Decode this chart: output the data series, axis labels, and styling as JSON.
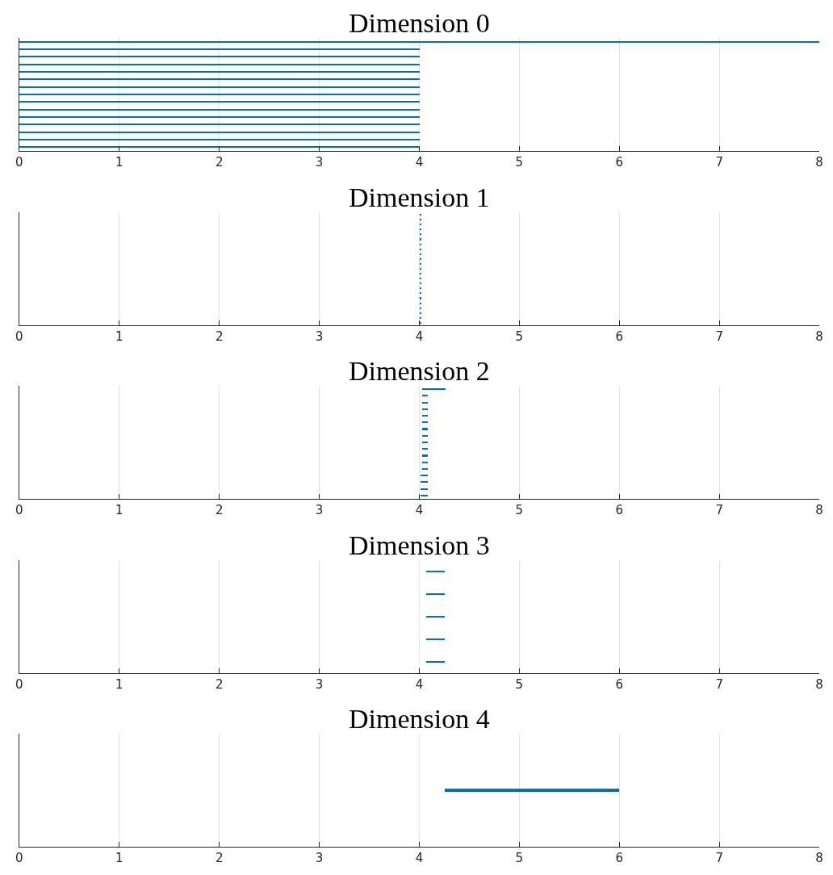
{
  "chart_data": [
    {
      "type": "bar",
      "orientation": "horizontal",
      "title": "Dimension 0",
      "color": "#0072bd",
      "categories": [
        null,
        null,
        null,
        null,
        null,
        null,
        null,
        null,
        null,
        null,
        null,
        null,
        null,
        null,
        null
      ],
      "base": [
        0,
        0,
        0,
        0,
        0,
        0,
        0,
        0,
        0,
        0,
        0,
        0,
        0,
        0,
        0
      ],
      "values": [
        8,
        4,
        4,
        4,
        4,
        4,
        4,
        4,
        4,
        4,
        4,
        4,
        4,
        4,
        4
      ],
      "xlim": [
        0,
        8
      ],
      "xticks": [
        0,
        1,
        2,
        3,
        4,
        5,
        6,
        7,
        8
      ],
      "grid": "x",
      "tick_labels": "x"
    },
    {
      "type": "bar",
      "orientation": "horizontal",
      "title": "Dimension 1",
      "color": "#0072bd",
      "categories": [
        null,
        null,
        null,
        null,
        null,
        null,
        null,
        null,
        null,
        null,
        null,
        null,
        null,
        null,
        null,
        null,
        null,
        null,
        null,
        null,
        null,
        null,
        null
      ],
      "base": [
        4,
        4,
        4,
        4,
        4,
        4,
        4,
        4,
        4,
        4,
        4,
        4,
        4,
        4,
        4,
        4,
        4,
        4,
        4,
        4,
        4,
        4,
        4
      ],
      "values": [
        0.02,
        0.02,
        0.02,
        0.02,
        0.02,
        0.02,
        0.02,
        0.02,
        0.02,
        0.02,
        0.02,
        0.02,
        0.02,
        0.02,
        0.02,
        0.02,
        0.02,
        0.02,
        0.02,
        0.02,
        0.02,
        0.02,
        0.02
      ],
      "xlim": [
        0,
        8
      ],
      "xticks": [
        0,
        1,
        2,
        3,
        4,
        5,
        6,
        7,
        8
      ],
      "grid": "x",
      "tick_labels": "x"
    },
    {
      "type": "bar",
      "orientation": "horizontal",
      "title": "Dimension 2",
      "color": "#0072bd",
      "categories": [
        null,
        null,
        null,
        null,
        null,
        null,
        null,
        null,
        null,
        null,
        null,
        null,
        null,
        null,
        null,
        null,
        null
      ],
      "base": [
        4.03,
        4.03,
        4.03,
        4.03,
        4.03,
        4.03,
        4.03,
        4.03,
        4.03,
        4.03,
        4.03,
        4.03,
        4.03,
        4.01,
        4.01,
        4.01,
        4.01
      ],
      "values": [
        0.23,
        0.05,
        0.05,
        0.05,
        0.05,
        0.05,
        0.05,
        0.05,
        0.05,
        0.05,
        0.05,
        0.05,
        0.05,
        0.07,
        0.07,
        0.07,
        0.07
      ],
      "xlim": [
        0,
        8
      ],
      "xticks": [
        0,
        1,
        2,
        3,
        4,
        5,
        6,
        7,
        8
      ],
      "grid": "x",
      "tick_labels": "x"
    },
    {
      "type": "bar",
      "orientation": "horizontal",
      "title": "Dimension 3",
      "color": "#0072bd",
      "categories": [
        null,
        null,
        null,
        null,
        null
      ],
      "base": [
        4.07,
        4.07,
        4.07,
        4.07,
        4.07
      ],
      "values": [
        0.18,
        0.18,
        0.18,
        0.18,
        0.18
      ],
      "xlim": [
        0,
        8
      ],
      "xticks": [
        0,
        1,
        2,
        3,
        4,
        5,
        6,
        7,
        8
      ],
      "grid": "x",
      "tick_labels": "x"
    },
    {
      "type": "bar",
      "orientation": "horizontal",
      "title": "Dimension 4",
      "color": "#0072bd",
      "categories": [
        null
      ],
      "base": [
        4.25
      ],
      "values": [
        1.75
      ],
      "xlim": [
        0,
        8
      ],
      "xticks": [
        0,
        1,
        2,
        3,
        4,
        5,
        6,
        7,
        8
      ],
      "grid": "x",
      "tick_labels": "x"
    }
  ]
}
